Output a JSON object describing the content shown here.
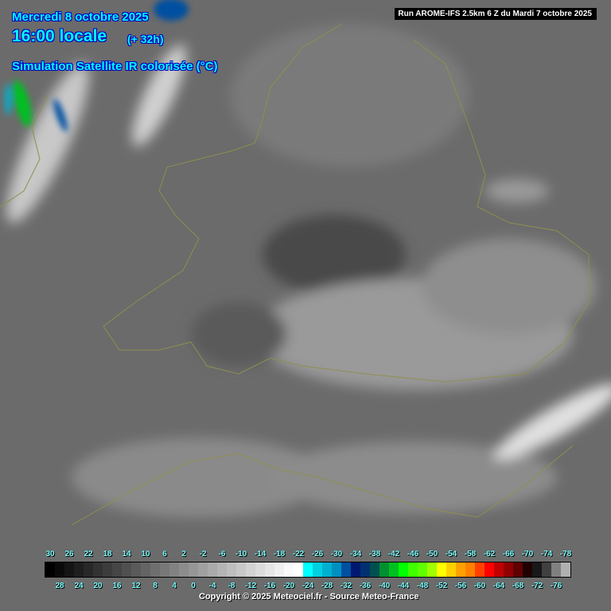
{
  "header": {
    "date": "Mercredi 8 octobre 2025",
    "time": "16:00 locale",
    "lead": "(+ 32h)",
    "product": "Simulation Satellite IR colorisée (°C)",
    "run": "Run AROME-IFS 2.5km 6 Z du Mardi 7 octobre 2025"
  },
  "legend": {
    "top_labels": [
      "30",
      "26",
      "22",
      "18",
      "14",
      "10",
      "6",
      "2",
      "-2",
      "-6",
      "-10",
      "-14",
      "-18",
      "-22",
      "-26",
      "-30",
      "-34",
      "-38",
      "-42",
      "-46",
      "-50",
      "-54",
      "-58",
      "-62",
      "-66",
      "-70",
      "-74",
      "-78"
    ],
    "bottom_labels": [
      "28",
      "24",
      "20",
      "16",
      "12",
      "8",
      "4",
      "0",
      "-4",
      "-8",
      "-12",
      "-16",
      "-20",
      "-24",
      "-28",
      "-32",
      "-36",
      "-40",
      "-44",
      "-48",
      "-52",
      "-56",
      "-60",
      "-64",
      "-68",
      "-72",
      "-76"
    ],
    "colors": [
      "#000000",
      "#0a0a0a",
      "#141414",
      "#1e1e1e",
      "#282828",
      "#323232",
      "#3c3c3c",
      "#464646",
      "#505050",
      "#5a5a5a",
      "#646464",
      "#6e6e6e",
      "#787878",
      "#828282",
      "#8c8c8c",
      "#969696",
      "#a0a0a0",
      "#aaaaaa",
      "#b4b4b4",
      "#bebebe",
      "#c8c8c8",
      "#d2d2d2",
      "#dcdcdc",
      "#e6e6e6",
      "#f0f0f0",
      "#fafafa",
      "#ffffff",
      "#00ffff",
      "#00d0e0",
      "#00b0d0",
      "#0090c0",
      "#0050a0",
      "#001870",
      "#003070",
      "#005050",
      "#009030",
      "#00c020",
      "#00ff00",
      "#40ff00",
      "#60ff00",
      "#a0ff00",
      "#ffff00",
      "#ffd000",
      "#ffa000",
      "#ff8000",
      "#ff4000",
      "#ff0000",
      "#c00000",
      "#900000",
      "#600000",
      "#200000",
      "#181818",
      "#404040",
      "#808080",
      "#b0b0b0"
    ]
  },
  "copyright": "Copyright © 2025 Meteociel.fr - Source Meteo-France"
}
